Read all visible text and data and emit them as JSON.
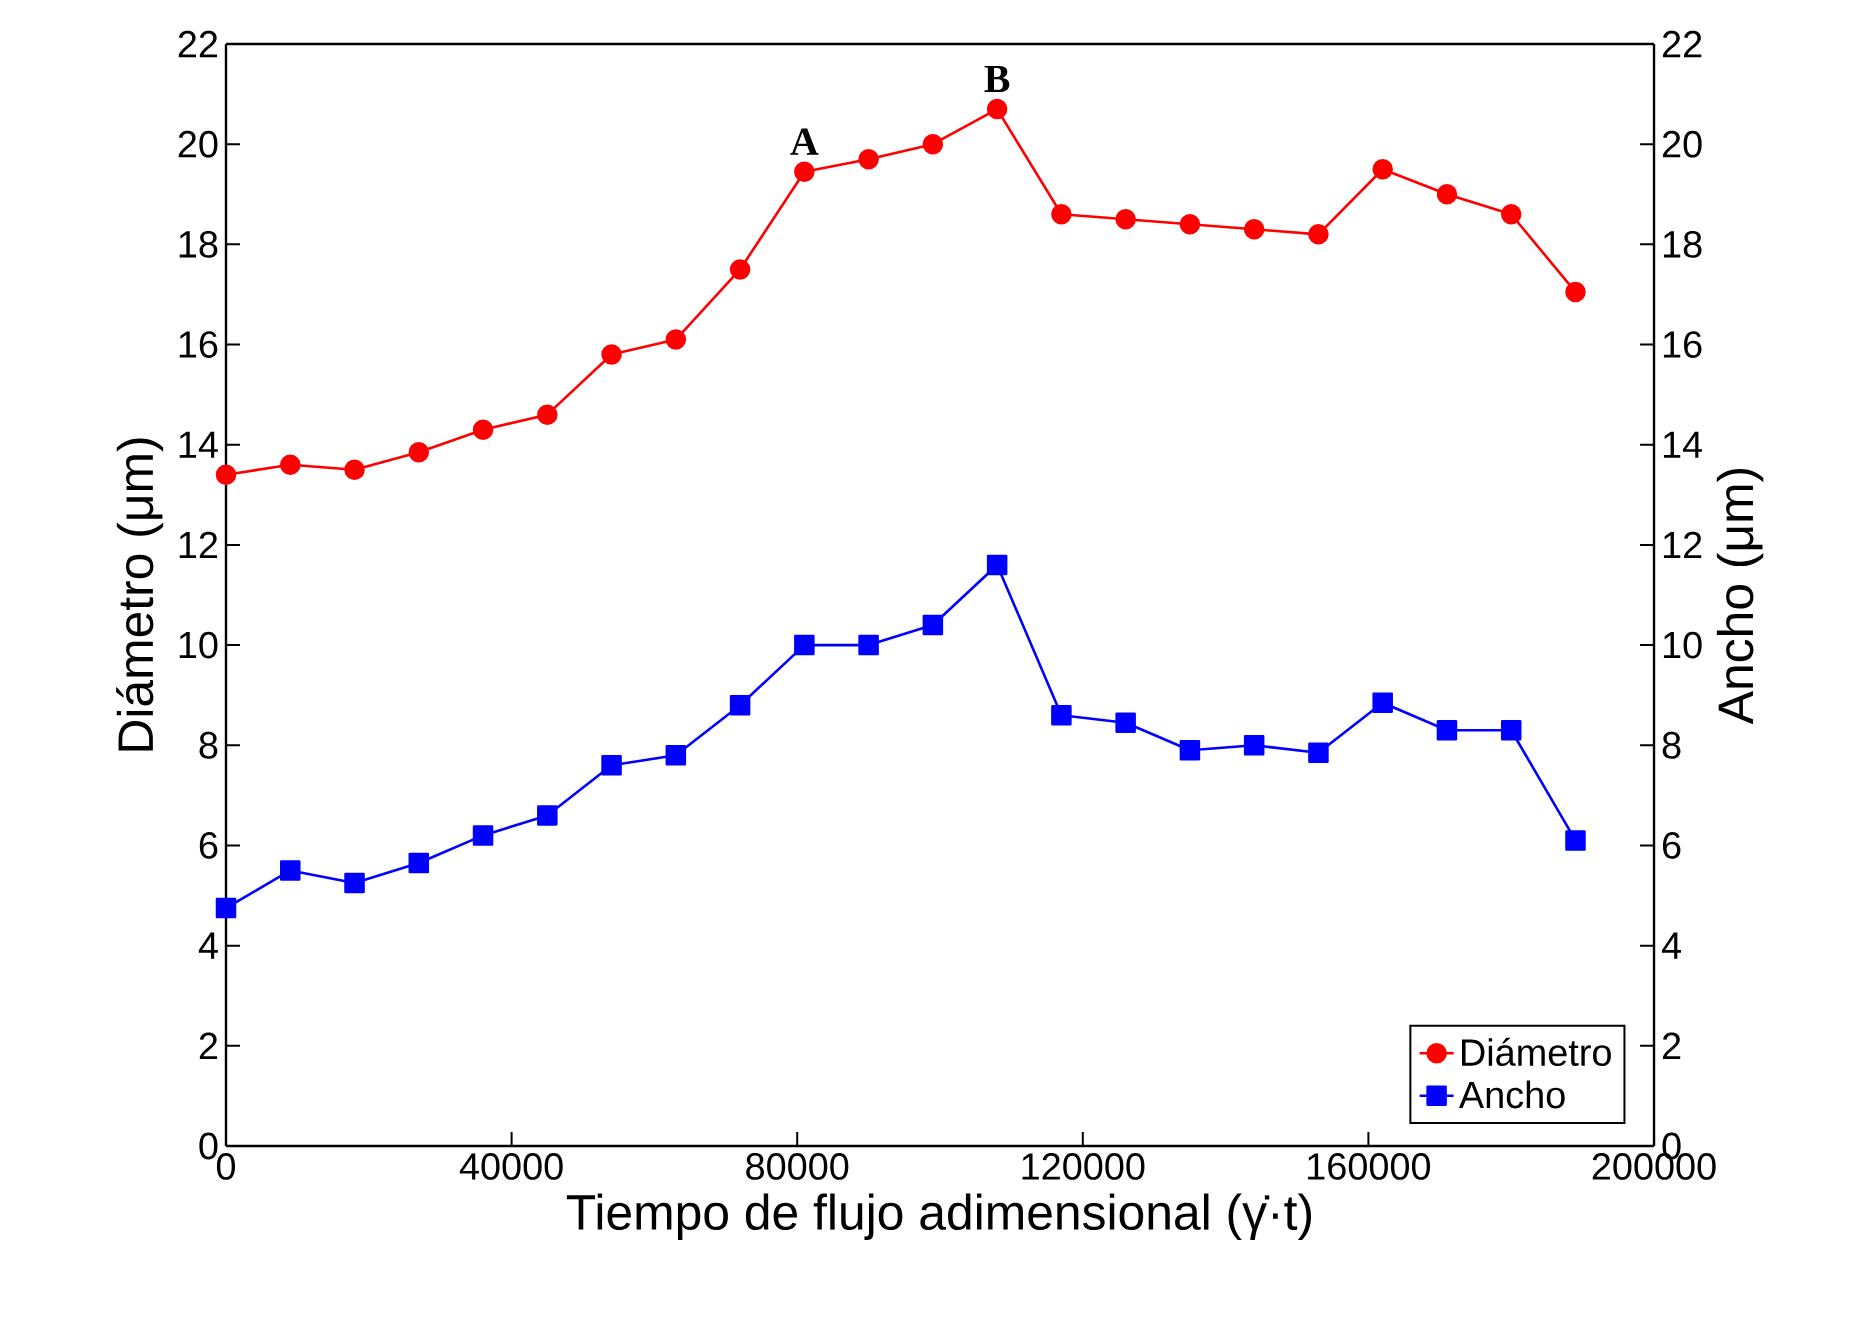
{
  "chart_data": {
    "type": "line",
    "xlabel": "Tiempo de flujo adimensional (γ̇·t)",
    "ylabel": "Diámetro (μm)",
    "y2label": "Ancho (μm)",
    "x": [
      0,
      9000,
      18000,
      27000,
      36000,
      45000,
      54000,
      63000,
      72000,
      81000,
      90000,
      99000,
      108000,
      117000,
      126000,
      135000,
      144000,
      153000,
      162000,
      171000,
      180000,
      189000
    ],
    "series": [
      {
        "name": "Diámetro",
        "color": "#ff0000",
        "marker": "circle",
        "values": [
          13.4,
          13.6,
          13.5,
          13.85,
          14.3,
          14.6,
          15.8,
          16.1,
          17.5,
          19.45,
          19.7,
          20.0,
          20.7,
          18.6,
          18.5,
          18.4,
          18.3,
          18.2,
          19.5,
          19.0,
          18.6,
          17.05
        ]
      },
      {
        "name": "Ancho",
        "color": "#0000ff",
        "marker": "square",
        "axis": "y2",
        "values": [
          4.75,
          5.5,
          5.25,
          5.65,
          6.2,
          6.6,
          7.6,
          7.8,
          8.8,
          10.0,
          10.0,
          10.4,
          11.6,
          8.6,
          8.45,
          7.9,
          8.0,
          7.85,
          8.85,
          8.3,
          8.3,
          6.1
        ]
      }
    ],
    "xlim": [
      0,
      200000
    ],
    "xticks": [
      0,
      40000,
      80000,
      120000,
      160000,
      200000
    ],
    "ylim": [
      0,
      22
    ],
    "yticks": [
      0,
      2,
      4,
      6,
      8,
      10,
      12,
      14,
      16,
      18,
      20,
      22
    ],
    "y2lim": [
      0,
      22
    ],
    "y2ticks": [
      0,
      2,
      4,
      6,
      8,
      10,
      12,
      14,
      16,
      18,
      20,
      22
    ],
    "legend": "bottom right",
    "grid": false,
    "line_style": "solid",
    "annotations": [
      {
        "text": "A",
        "x": 81000,
        "y": 19.45
      },
      {
        "text": "B",
        "x": 108000,
        "y": 20.7
      }
    ]
  }
}
